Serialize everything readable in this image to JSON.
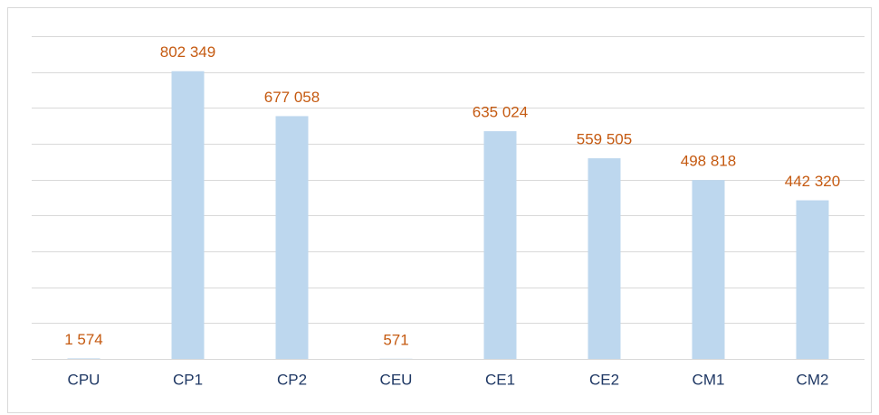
{
  "chart_data": {
    "type": "bar",
    "categories": [
      "CPU",
      "CP1",
      "CP2",
      "CEU",
      "CE1",
      "CE2",
      "CM1",
      "CM2"
    ],
    "values": [
      1574,
      802349,
      677058,
      571,
      635024,
      559505,
      498818,
      442320
    ],
    "value_labels": [
      "1 574",
      "802 349",
      "677 058",
      "571",
      "635 024",
      "559 505",
      "498 818",
      "442 320"
    ],
    "color": "#bdd7ee",
    "label_color": "#c55a11",
    "ylim": [
      0,
      900000
    ],
    "yticks": [
      0,
      100000,
      200000,
      300000,
      400000,
      500000,
      600000,
      700000,
      800000,
      900000
    ],
    "grid": true
  }
}
